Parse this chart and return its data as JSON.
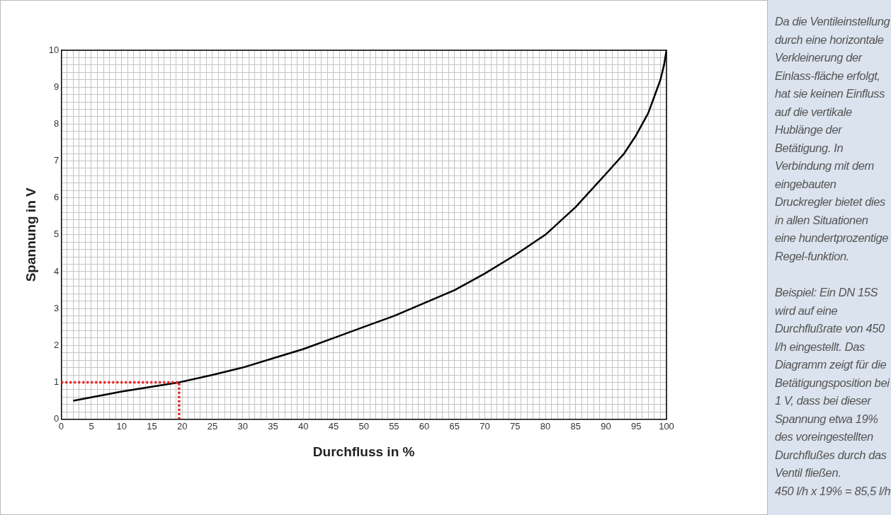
{
  "chart_data": {
    "type": "line",
    "xlabel": "Durchfluss in %",
    "ylabel": "Spannung in V",
    "xlim": [
      0,
      100
    ],
    "ylim": [
      0,
      10
    ],
    "xticks": [
      0,
      {
        "value": 1,
        "label": null
      },
      {
        "value": 2,
        "label": null
      },
      {
        "value": 3,
        "label": null
      },
      {
        "value": 4,
        "label": null
      },
      5,
      {
        "value": 6,
        "label": null
      },
      {
        "value": 7,
        "label": null
      },
      {
        "value": 8,
        "label": null
      },
      {
        "value": 9,
        "label": null
      },
      10,
      {
        "value": 11,
        "label": null
      },
      {
        "value": 12,
        "label": null
      },
      {
        "value": 13,
        "label": null
      },
      {
        "value": 14,
        "label": null
      },
      15,
      {
        "value": 16,
        "label": null
      },
      {
        "value": 17,
        "label": null
      },
      {
        "value": 18,
        "label": null
      },
      {
        "value": 19,
        "label": null
      },
      20,
      {
        "value": 21,
        "label": null
      },
      {
        "value": 22,
        "label": null
      },
      {
        "value": 23,
        "label": null
      },
      {
        "value": 24,
        "label": null
      },
      25,
      {
        "value": 26,
        "label": null
      },
      {
        "value": 27,
        "label": null
      },
      {
        "value": 28,
        "label": null
      },
      {
        "value": 29,
        "label": null
      },
      30,
      {
        "value": 31,
        "label": null
      },
      {
        "value": 32,
        "label": null
      },
      {
        "value": 33,
        "label": null
      },
      {
        "value": 34,
        "label": null
      },
      35,
      {
        "value": 36,
        "label": null
      },
      {
        "value": 37,
        "label": null
      },
      {
        "value": 38,
        "label": null
      },
      {
        "value": 39,
        "label": null
      },
      40,
      {
        "value": 41,
        "label": null
      },
      {
        "value": 42,
        "label": null
      },
      {
        "value": 43,
        "label": null
      },
      {
        "value": 44,
        "label": null
      },
      45,
      {
        "value": 46,
        "label": null
      },
      {
        "value": 47,
        "label": null
      },
      {
        "value": 48,
        "label": null
      },
      {
        "value": 49,
        "label": null
      },
      50,
      {
        "value": 51,
        "label": null
      },
      {
        "value": 52,
        "label": null
      },
      {
        "value": 53,
        "label": null
      },
      {
        "value": 54,
        "label": null
      },
      55,
      {
        "value": 56,
        "label": null
      },
      {
        "value": 57,
        "label": null
      },
      {
        "value": 58,
        "label": null
      },
      {
        "value": 59,
        "label": null
      },
      60,
      {
        "value": 61,
        "label": null
      },
      {
        "value": 62,
        "label": null
      },
      {
        "value": 63,
        "label": null
      },
      {
        "value": 64,
        "label": null
      },
      65,
      {
        "value": 66,
        "label": null
      },
      {
        "value": 67,
        "label": null
      },
      {
        "value": 68,
        "label": null
      },
      {
        "value": 69,
        "label": null
      },
      70,
      {
        "value": 71,
        "label": null
      },
      {
        "value": 72,
        "label": null
      },
      {
        "value": 73,
        "label": null
      },
      {
        "value": 74,
        "label": null
      },
      75,
      {
        "value": 76,
        "label": null
      },
      {
        "value": 77,
        "label": null
      },
      {
        "value": 78,
        "label": null
      },
      {
        "value": 79,
        "label": null
      },
      80,
      {
        "value": 81,
        "label": null
      },
      {
        "value": 82,
        "label": null
      },
      {
        "value": 83,
        "label": null
      },
      {
        "value": 84,
        "label": null
      },
      85,
      {
        "value": 86,
        "label": null
      },
      {
        "value": 87,
        "label": null
      },
      {
        "value": 88,
        "label": null
      },
      {
        "value": 89,
        "label": null
      },
      90,
      {
        "value": 91,
        "label": null
      },
      {
        "value": 92,
        "label": null
      },
      {
        "value": 93,
        "label": null
      },
      {
        "value": 94,
        "label": null
      },
      95,
      {
        "value": 96,
        "label": null
      },
      {
        "value": 97,
        "label": null
      },
      {
        "value": 98,
        "label": null
      },
      {
        "value": 99,
        "label": null
      },
      100
    ],
    "yticks": [
      0,
      {
        "value": 0.2,
        "label": null
      },
      {
        "value": 0.4,
        "label": null
      },
      {
        "value": 0.6,
        "label": null
      },
      {
        "value": 0.8,
        "label": null
      },
      1,
      {
        "value": 1.2,
        "label": null
      },
      {
        "value": 1.4,
        "label": null
      },
      {
        "value": 1.6,
        "label": null
      },
      {
        "value": 1.8,
        "label": null
      },
      2,
      {
        "value": 2.2,
        "label": null
      },
      {
        "value": 2.4,
        "label": null
      },
      {
        "value": 2.6,
        "label": null
      },
      {
        "value": 2.8,
        "label": null
      },
      3,
      {
        "value": 3.2,
        "label": null
      },
      {
        "value": 3.4,
        "label": null
      },
      {
        "value": 3.6,
        "label": null
      },
      {
        "value": 3.8,
        "label": null
      },
      4,
      {
        "value": 4.2,
        "label": null
      },
      {
        "value": 4.4,
        "label": null
      },
      {
        "value": 4.6,
        "label": null
      },
      {
        "value": 4.8,
        "label": null
      },
      5,
      {
        "value": 5.2,
        "label": null
      },
      {
        "value": 5.4,
        "label": null
      },
      {
        "value": 5.6,
        "label": null
      },
      {
        "value": 5.8,
        "label": null
      },
      6,
      {
        "value": 6.2,
        "label": null
      },
      {
        "value": 6.4,
        "label": null
      },
      {
        "value": 6.6,
        "label": null
      },
      {
        "value": 6.8,
        "label": null
      },
      7,
      {
        "value": 7.2,
        "label": null
      },
      {
        "value": 7.4,
        "label": null
      },
      {
        "value": 7.6,
        "label": null
      },
      {
        "value": 7.8,
        "label": null
      },
      8,
      {
        "value": 8.2,
        "label": null
      },
      {
        "value": 8.4,
        "label": null
      },
      {
        "value": 8.6,
        "label": null
      },
      {
        "value": 8.8,
        "label": null
      },
      9,
      {
        "value": 9.2,
        "label": null
      },
      {
        "value": 9.4,
        "label": null
      },
      {
        "value": 9.6,
        "label": null
      },
      {
        "value": 9.8,
        "label": null
      },
      10
    ],
    "grid": true,
    "legend": false,
    "marker": "none",
    "series": [
      {
        "color": "#000000",
        "line_style": "solid",
        "x": [
          2,
          10,
          19.5,
          25,
          30,
          35,
          40,
          45,
          50,
          55,
          60,
          65,
          70,
          75,
          80,
          85,
          90,
          93,
          95,
          97,
          98,
          99,
          99.6,
          100
        ],
        "values": [
          0.5,
          0.75,
          1,
          1.2,
          1.4,
          1.65,
          1.9,
          2.2,
          2.5,
          2.8,
          3.15,
          3.5,
          3.95,
          4.45,
          5,
          5.75,
          6.65,
          7.2,
          7.7,
          8.3,
          8.75,
          9.2,
          9.6,
          10
        ]
      },
      {
        "color": "#e8231f",
        "line_style": "dotted",
        "x": [
          0,
          19.5,
          19.5
        ],
        "values": [
          1,
          1,
          0
        ]
      }
    ],
    "annotations": [
      "Da die Ventileinstellung durch eine horizontale Verkleinerung der Einlass-fläche erfolgt, hat sie keinen Einfluss auf die vertikale Hublänge der Betätigung. In Verbindung mit dem eingebauten Druckregler bietet dies in allen Situationen eine hundertprozentige Regel-funktion.",
      "Beispiel: Ein DN 15S wird auf eine Durchflußrate von 450 l/h eingestellt. Das Diagramm zeigt für die Betätigungsposition bei 1 V, dass bei dieser Spannung etwa 19% des voreingestellten Durchflußes durch das Ventil fließen.",
      "450 l/h x 19% = 85,5 l/h"
    ]
  }
}
